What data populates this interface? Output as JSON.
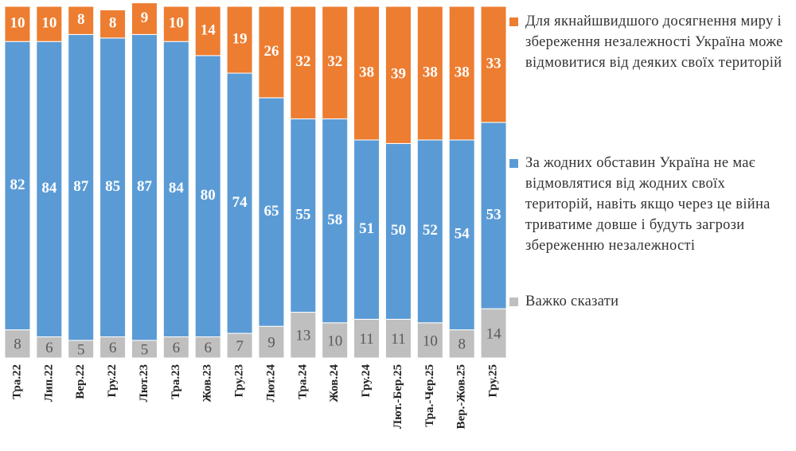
{
  "chart_data": {
    "type": "stacked-bar",
    "categories": [
      "Тра.22",
      "Лип.22",
      "Вер.22",
      "Гру.22",
      "Лют.23",
      "Тра.23",
      "Жов.23",
      "Гру.23",
      "Лют.24",
      "Тра.24",
      "Жов.24",
      "Гру.24",
      "Лют.-Бер.25",
      "Тра.-Чер.25",
      "Вер.-Жов.25",
      "Гру.25"
    ],
    "ylim": [
      0,
      100
    ],
    "series": [
      {
        "name": "Важко сказати",
        "color": "#bfbfbf",
        "values": [
          8,
          6,
          5,
          6,
          5,
          6,
          6,
          7,
          9,
          13,
          10,
          11,
          11,
          10,
          8,
          14
        ]
      },
      {
        "name": "За жодних обставин Україна не має відмовлятися від жодних своїх територій, навіть якщо через це війна триватиме довше і будуть загрози збереженню незалежності",
        "color": "#5b9bd5",
        "values": [
          82,
          84,
          87,
          85,
          87,
          84,
          80,
          74,
          65,
          55,
          58,
          51,
          50,
          52,
          54,
          53
        ]
      },
      {
        "name": "Для якнайшвидшого досягнення миру і збереження незалежності Україна може відмовитися від деяких своїх територій",
        "color": "#ed7d31",
        "values": [
          10,
          10,
          8,
          8,
          9,
          10,
          14,
          19,
          26,
          32,
          32,
          38,
          39,
          38,
          38,
          33
        ]
      }
    ]
  }
}
